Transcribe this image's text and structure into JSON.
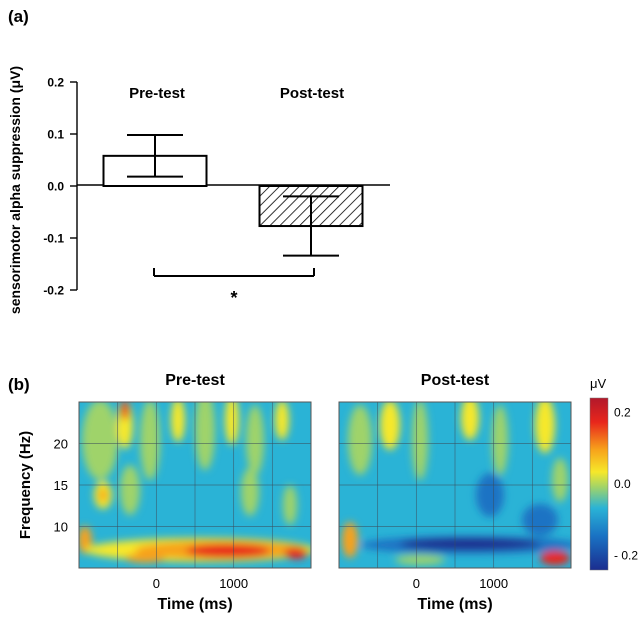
{
  "panel_a": {
    "label": "(a)",
    "chart_data": {
      "type": "bar",
      "ylabel": "sensorimotor alpha suppression (μV)",
      "ylim": [
        -0.2,
        0.2
      ],
      "yticks": [
        "0.2",
        "0.1",
        "0.0",
        "-0.1",
        "-0.2"
      ],
      "ytick_values": [
        0.2,
        0.1,
        0.0,
        -0.1,
        -0.2
      ],
      "categories": [
        "Pre-test",
        "Post-test"
      ],
      "values": [
        0.058,
        -0.077
      ],
      "error_low": [
        0.018,
        -0.134
      ],
      "error_high": [
        0.098,
        -0.02
      ],
      "fills": [
        "#ffffff",
        "hatched"
      ],
      "significance": "*"
    }
  },
  "panel_b": {
    "label": "(b)",
    "chart_data": [
      {
        "type": "heatmap",
        "title": "Pre-test",
        "xlabel": "Time (ms)",
        "ylabel": "Frequency (Hz)",
        "xticks": [
          "0",
          "1000"
        ],
        "xtick_values": [
          0,
          1000
        ],
        "yticks": [
          "20",
          "15",
          "10"
        ],
        "ytick_values": [
          20,
          15,
          10
        ],
        "xlim": [
          -1000,
          2000
        ],
        "ylim": [
          5,
          25
        ]
      },
      {
        "type": "heatmap",
        "title": "Post-test",
        "xlabel": "Time (ms)",
        "xticks": [
          "0",
          "1000"
        ],
        "xtick_values": [
          0,
          1000
        ],
        "xlim": [
          -1000,
          2000
        ],
        "ylim": [
          5,
          25
        ]
      }
    ],
    "colorbar": {
      "unit": "μV",
      "ticks": [
        "0.2",
        "0.0",
        "- 0.2"
      ],
      "tick_values": [
        0.2,
        0.0,
        -0.2
      ],
      "colors": [
        "#b2182b",
        "#e8261c",
        "#f7a21b",
        "#f6e82a",
        "#9fd36a",
        "#2ab3d6",
        "#1a73c4",
        "#1b2d8f"
      ]
    }
  }
}
